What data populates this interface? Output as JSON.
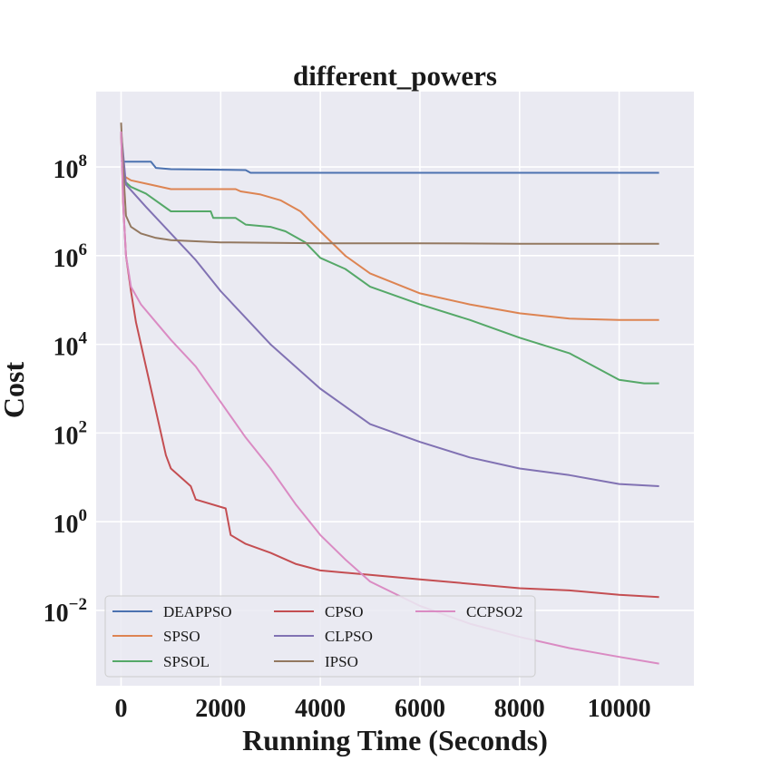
{
  "chart_data": {
    "type": "line",
    "title": "different_powers",
    "xlabel": "Running Time (Seconds)",
    "ylabel": "Cost",
    "xlim": [
      -500,
      11500
    ],
    "ylim_log10": [
      -3.7,
      9.7
    ],
    "y_scale": "log",
    "grid": true,
    "legend_placement": "lower-left",
    "x_ticks": [
      {
        "value": 0,
        "label": "0"
      },
      {
        "value": 2000,
        "label": "2000"
      },
      {
        "value": 4000,
        "label": "4000"
      },
      {
        "value": 6000,
        "label": "6000"
      },
      {
        "value": 8000,
        "label": "8000"
      },
      {
        "value": 10000,
        "label": "10000"
      }
    ],
    "y_ticks": [
      {
        "log10": 8,
        "base": "10",
        "exp": "8"
      },
      {
        "log10": 6,
        "base": "10",
        "exp": "6"
      },
      {
        "log10": 4,
        "base": "10",
        "exp": "4"
      },
      {
        "log10": 2,
        "base": "10",
        "exp": "2"
      },
      {
        "log10": 0,
        "base": "10",
        "exp": "0"
      },
      {
        "log10": -2,
        "base": "10",
        "exp": "−2"
      }
    ],
    "series": [
      {
        "name": "DEAPPSO",
        "color": "#4c72b0",
        "points": [
          [
            0,
            8.15
          ],
          [
            50,
            8.12
          ],
          [
            600,
            8.12
          ],
          [
            700,
            7.98
          ],
          [
            1000,
            7.95
          ],
          [
            2500,
            7.93
          ],
          [
            2600,
            7.87
          ],
          [
            10800,
            7.87
          ]
        ]
      },
      {
        "name": "SPSO",
        "color": "#dd8452",
        "points": [
          [
            0,
            8.8
          ],
          [
            50,
            7.8
          ],
          [
            200,
            7.7
          ],
          [
            600,
            7.6
          ],
          [
            1000,
            7.5
          ],
          [
            2300,
            7.5
          ],
          [
            2400,
            7.45
          ],
          [
            2800,
            7.38
          ],
          [
            3200,
            7.25
          ],
          [
            3600,
            7.0
          ],
          [
            4000,
            6.55
          ],
          [
            4500,
            6.0
          ],
          [
            5000,
            5.6
          ],
          [
            6000,
            5.15
          ],
          [
            7000,
            4.9
          ],
          [
            8000,
            4.7
          ],
          [
            9000,
            4.58
          ],
          [
            10000,
            4.55
          ],
          [
            10800,
            4.55
          ]
        ]
      },
      {
        "name": "SPSOL",
        "color": "#55a868",
        "points": [
          [
            0,
            8.8
          ],
          [
            50,
            7.7
          ],
          [
            200,
            7.55
          ],
          [
            500,
            7.4
          ],
          [
            1000,
            7.0
          ],
          [
            1800,
            7.0
          ],
          [
            1850,
            6.85
          ],
          [
            2300,
            6.85
          ],
          [
            2500,
            6.7
          ],
          [
            3000,
            6.65
          ],
          [
            3300,
            6.55
          ],
          [
            3700,
            6.3
          ],
          [
            4000,
            5.95
          ],
          [
            4500,
            5.7
          ],
          [
            5000,
            5.3
          ],
          [
            6000,
            4.9
          ],
          [
            7000,
            4.55
          ],
          [
            8000,
            4.15
          ],
          [
            9000,
            3.8
          ],
          [
            10000,
            3.2
          ],
          [
            10500,
            3.12
          ],
          [
            10800,
            3.12
          ]
        ]
      },
      {
        "name": "CPSO",
        "color": "#c44e52",
        "points": [
          [
            0,
            8.8
          ],
          [
            40,
            7.2
          ],
          [
            100,
            6.0
          ],
          [
            200,
            5.2
          ],
          [
            300,
            4.5
          ],
          [
            500,
            3.5
          ],
          [
            700,
            2.5
          ],
          [
            900,
            1.5
          ],
          [
            1000,
            1.2
          ],
          [
            1400,
            0.8
          ],
          [
            1500,
            0.5
          ],
          [
            2100,
            0.3
          ],
          [
            2200,
            -0.3
          ],
          [
            2500,
            -0.5
          ],
          [
            3000,
            -0.7
          ],
          [
            3500,
            -0.95
          ],
          [
            4000,
            -1.1
          ],
          [
            5000,
            -1.2
          ],
          [
            6000,
            -1.3
          ],
          [
            7000,
            -1.4
          ],
          [
            8000,
            -1.5
          ],
          [
            9000,
            -1.55
          ],
          [
            10000,
            -1.65
          ],
          [
            10800,
            -1.7
          ]
        ]
      },
      {
        "name": "CLPSO",
        "color": "#8172b3",
        "points": [
          [
            0,
            8.8
          ],
          [
            100,
            7.6
          ],
          [
            500,
            7.1
          ],
          [
            1000,
            6.5
          ],
          [
            1500,
            5.9
          ],
          [
            2000,
            5.2
          ],
          [
            2500,
            4.6
          ],
          [
            3000,
            4.0
          ],
          [
            3500,
            3.5
          ],
          [
            4000,
            3.0
          ],
          [
            4500,
            2.6
          ],
          [
            5000,
            2.2
          ],
          [
            6000,
            1.8
          ],
          [
            7000,
            1.45
          ],
          [
            8000,
            1.2
          ],
          [
            9000,
            1.05
          ],
          [
            10000,
            0.85
          ],
          [
            10800,
            0.8
          ]
        ]
      },
      {
        "name": "IPSO",
        "color": "#937860",
        "points": [
          [
            0,
            9.0
          ],
          [
            40,
            8.0
          ],
          [
            100,
            6.9
          ],
          [
            200,
            6.65
          ],
          [
            400,
            6.5
          ],
          [
            700,
            6.4
          ],
          [
            1000,
            6.35
          ],
          [
            2000,
            6.3
          ],
          [
            4000,
            6.28
          ],
          [
            6000,
            6.28
          ],
          [
            8000,
            6.27
          ],
          [
            10800,
            6.27
          ]
        ]
      },
      {
        "name": "CCPSO2",
        "color": "#da8bc3",
        "points": [
          [
            0,
            8.8
          ],
          [
            50,
            7.0
          ],
          [
            100,
            6.0
          ],
          [
            200,
            5.3
          ],
          [
            400,
            4.9
          ],
          [
            700,
            4.5
          ],
          [
            1000,
            4.1
          ],
          [
            1500,
            3.5
          ],
          [
            2000,
            2.7
          ],
          [
            2500,
            1.9
          ],
          [
            3000,
            1.2
          ],
          [
            3500,
            0.4
          ],
          [
            4000,
            -0.3
          ],
          [
            4500,
            -0.85
          ],
          [
            5000,
            -1.35
          ],
          [
            6000,
            -1.9
          ],
          [
            7000,
            -2.3
          ],
          [
            8000,
            -2.6
          ],
          [
            9000,
            -2.85
          ],
          [
            10000,
            -3.05
          ],
          [
            10800,
            -3.2
          ]
        ]
      }
    ]
  }
}
